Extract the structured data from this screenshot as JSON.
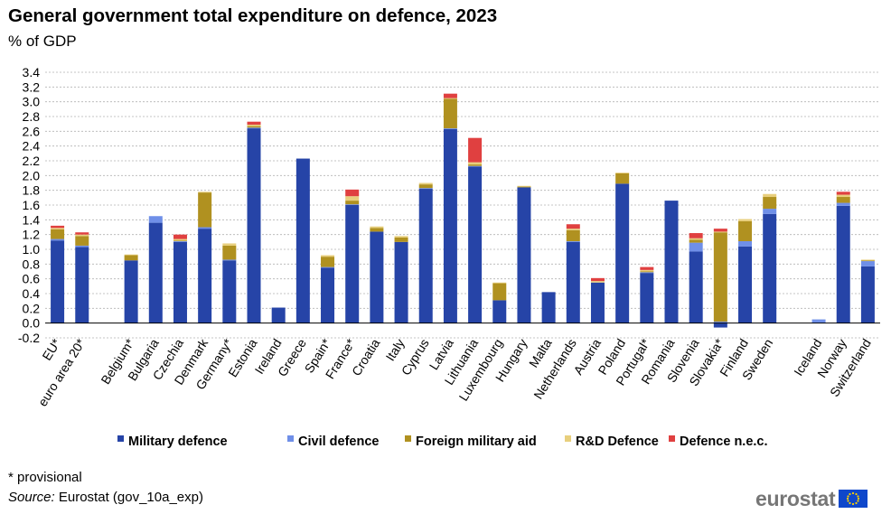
{
  "title": "General government total expenditure on defence, 2023",
  "subtitle": "% of GDP",
  "note": "* provisional",
  "source_label": "Source:",
  "source_text": "Eurostat (gov_10a_exp)",
  "logo_text": "eurostat",
  "chart_data": {
    "type": "bar",
    "stacked": true,
    "title": "General government total expenditure on defence, 2023",
    "ylabel": "% of GDP",
    "ylim": [
      -0.2,
      3.4
    ],
    "ytick_step": 0.2,
    "yticks": [
      "-0.2",
      "0.0",
      "0.2",
      "0.4",
      "0.6",
      "0.8",
      "1.0",
      "1.2",
      "1.4",
      "1.6",
      "1.8",
      "2.0",
      "2.2",
      "2.4",
      "2.6",
      "2.8",
      "3.0",
      "3.2",
      "3.4"
    ],
    "grid": true,
    "legend_position": "bottom",
    "categories": [
      "EU*",
      "euro area 20*",
      "",
      "Belgium*",
      "Bulgaria",
      "Czechia",
      "Denmark",
      "Germany*",
      "Estonia",
      "Ireland",
      "Greece",
      "Spain*",
      "France*",
      "Croatia",
      "Italy",
      "Cyprus",
      "Latvia",
      "Lithuania",
      "Luxembourg",
      "Hungary",
      "Malta",
      "Netherlands",
      "Austria",
      "Poland",
      "Portugal*",
      "Romania",
      "Slovenia",
      "Slovakia*",
      "Finland",
      "Sweden",
      "",
      "Iceland",
      "Norway",
      "Switzerland"
    ],
    "series": [
      {
        "name": "Military defence",
        "color": "#2644A7",
        "values": [
          1.12,
          1.03,
          null,
          0.85,
          1.36,
          1.1,
          1.28,
          0.85,
          2.64,
          0.21,
          2.23,
          0.75,
          1.6,
          1.24,
          1.1,
          1.82,
          2.63,
          2.12,
          0.31,
          1.84,
          0.42,
          1.1,
          0.55,
          1.89,
          0.68,
          1.66,
          0.97,
          -0.06,
          1.04,
          1.48,
          null,
          0.0,
          1.59,
          0.77
        ]
      },
      {
        "name": "Civil defence",
        "color": "#6F8FE8",
        "values": [
          0.02,
          0.02,
          null,
          0.0,
          0.09,
          0.01,
          0.02,
          0.01,
          0.01,
          0.0,
          0.0,
          0.01,
          0.01,
          0.0,
          0.0,
          0.01,
          0.01,
          0.01,
          0.0,
          0.0,
          0.0,
          0.01,
          0.0,
          0.0,
          0.01,
          0.0,
          0.12,
          0.02,
          0.07,
          0.07,
          null,
          0.05,
          0.04,
          0.07
        ]
      },
      {
        "name": "Foreign military aid",
        "color": "#B09120",
        "values": [
          0.13,
          0.13,
          null,
          0.07,
          0.0,
          0.01,
          0.47,
          0.19,
          0.02,
          0.0,
          0.0,
          0.14,
          0.05,
          0.05,
          0.06,
          0.05,
          0.4,
          0.02,
          0.23,
          0.01,
          0.0,
          0.15,
          0.0,
          0.14,
          0.01,
          0.0,
          0.04,
          1.21,
          0.27,
          0.16,
          null,
          0.0,
          0.08,
          0.01
        ]
      },
      {
        "name": "R&D Defence",
        "color": "#E8CF7D",
        "values": [
          0.02,
          0.02,
          null,
          0.01,
          0.0,
          0.02,
          0.01,
          0.03,
          0.02,
          0.0,
          0.0,
          0.02,
          0.06,
          0.02,
          0.02,
          0.02,
          0.01,
          0.03,
          0.01,
          0.01,
          0.0,
          0.02,
          0.02,
          0.01,
          0.02,
          0.0,
          0.02,
          0.01,
          0.03,
          0.04,
          null,
          0.0,
          0.03,
          0.01
        ]
      },
      {
        "name": "Defence n.e.c.",
        "color": "#E04040",
        "values": [
          0.03,
          0.03,
          null,
          0.0,
          0.0,
          0.06,
          0.0,
          0.0,
          0.04,
          0.0,
          0.0,
          0.0,
          0.09,
          0.0,
          0.0,
          0.0,
          0.06,
          0.33,
          0.0,
          0.0,
          0.0,
          0.06,
          0.04,
          0.0,
          0.04,
          0.0,
          0.07,
          0.04,
          0.0,
          0.0,
          null,
          0.0,
          0.04,
          0.0
        ]
      }
    ]
  }
}
